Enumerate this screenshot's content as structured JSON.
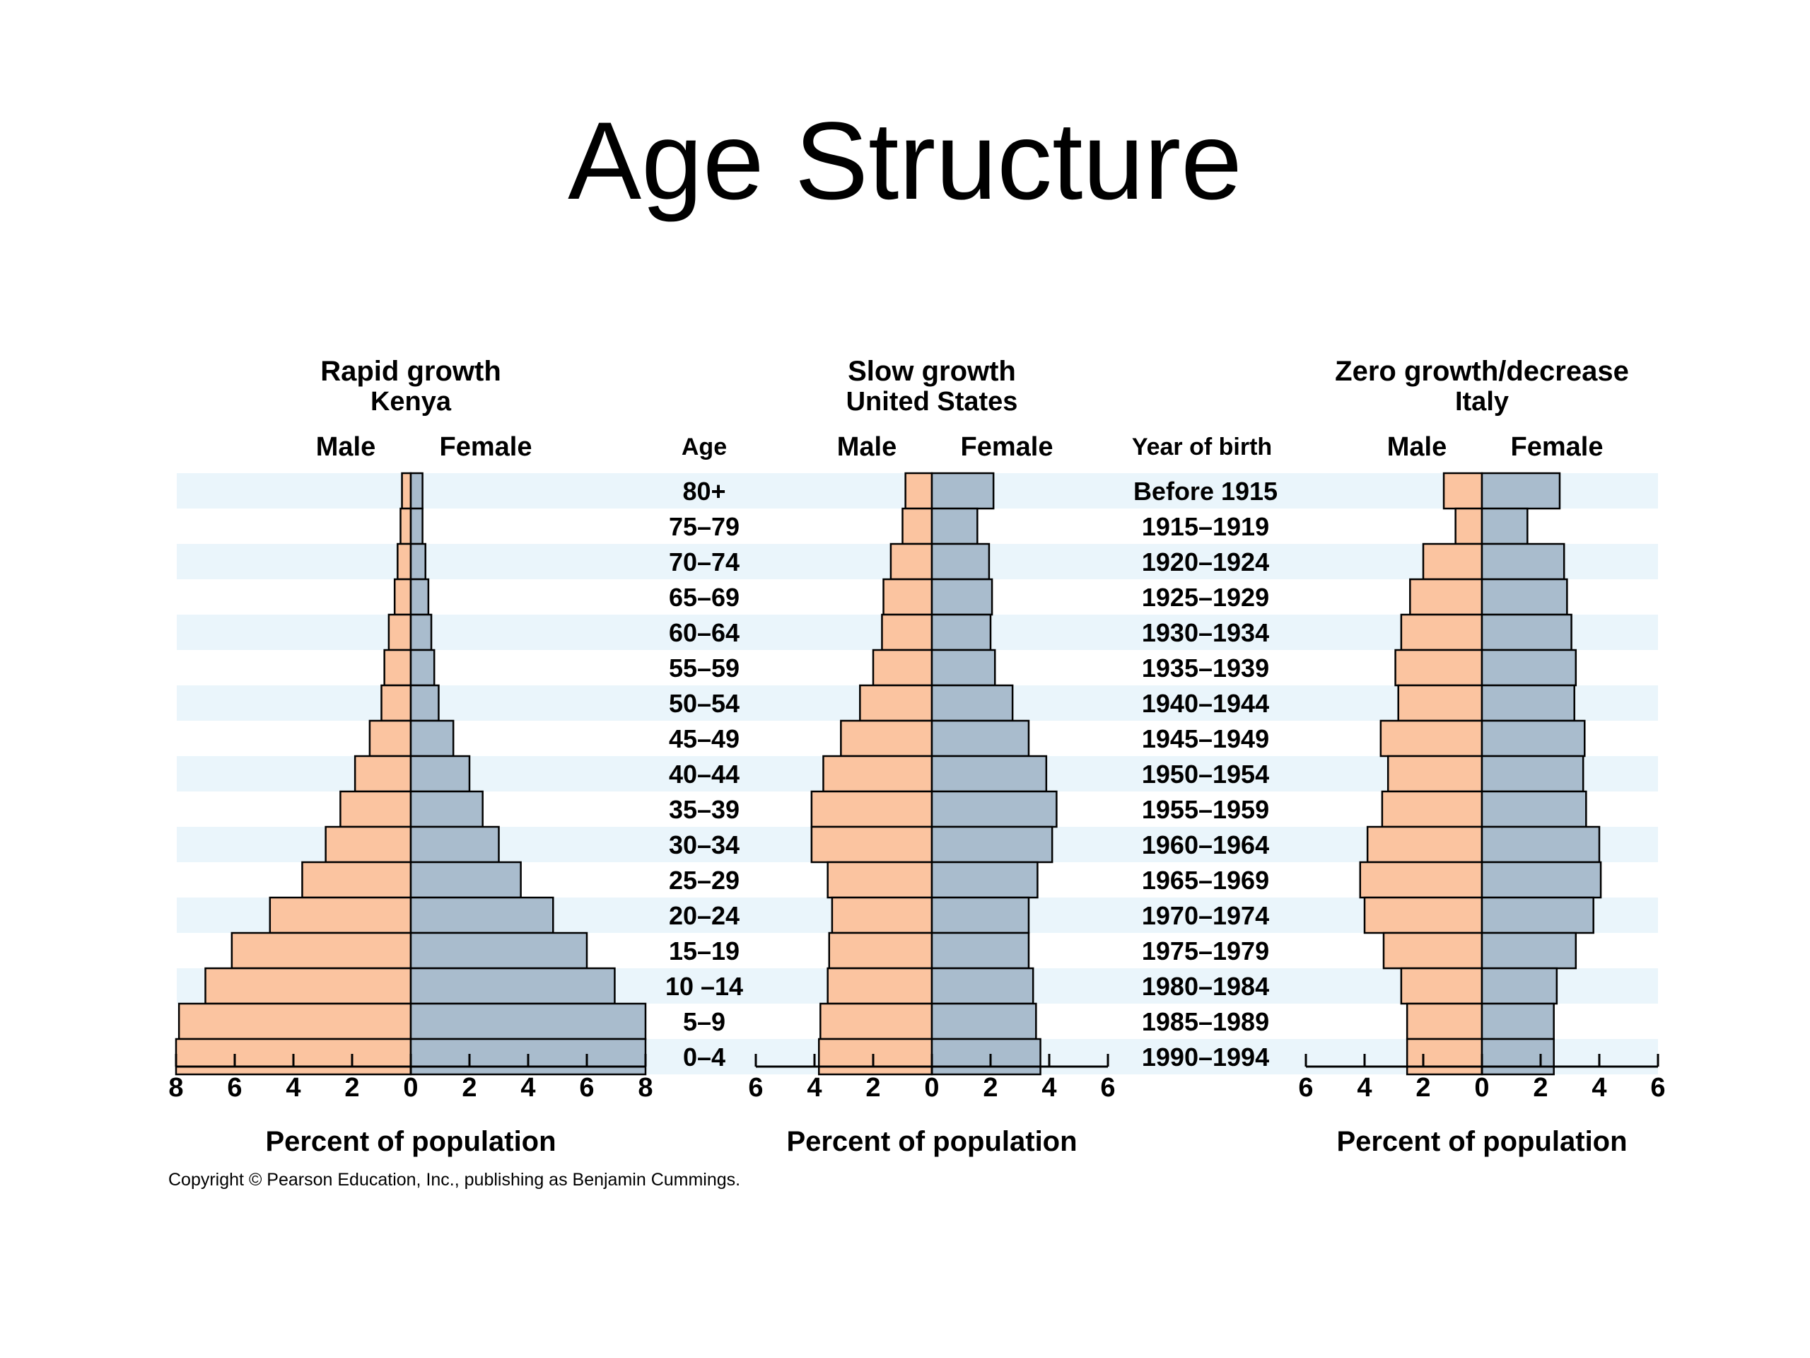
{
  "title": "Age Structure",
  "copyright": "Copyright © Pearson Education, Inc., publishing as Benjamin Cummings.",
  "colors": {
    "male": "#fbc4a0",
    "female": "#a9bccd",
    "band": "#eaf5fb",
    "outline": "#000000"
  },
  "labels": {
    "age_header": "Age",
    "year_header": "Year of birth"
  },
  "chart_data": {
    "type": "bar",
    "age_groups": [
      "80+",
      "75–79",
      "70–74",
      "65–69",
      "60–64",
      "55–59",
      "50–54",
      "45–49",
      "40–44",
      "35–39",
      "30–34",
      "25–29",
      "20–24",
      "15–19",
      "10 –14",
      "5–9",
      "0–4"
    ],
    "years_of_birth": [
      "Before 1915",
      "1915–1919",
      "1920–1924",
      "1925–1929",
      "1930–1934",
      "1935–1939",
      "1940–1944",
      "1945–1949",
      "1950–1954",
      "1955–1959",
      "1960–1964",
      "1965–1969",
      "1970–1974",
      "1975–1979",
      "1980–1984",
      "1985–1989",
      "1990–1994"
    ],
    "charts": [
      {
        "title": "Rapid growth",
        "subtitle": "Kenya",
        "male_label": "Male",
        "female_label": "Female",
        "xlabel": "Percent of population",
        "xmax": 8,
        "ticks": [
          8,
          6,
          4,
          2,
          0,
          2,
          4,
          6,
          8
        ],
        "male": [
          0.3,
          0.35,
          0.45,
          0.55,
          0.75,
          0.9,
          1.0,
          1.4,
          1.9,
          2.4,
          2.9,
          3.7,
          4.8,
          6.1,
          7.0,
          7.9,
          8.0
        ],
        "female": [
          0.4,
          0.4,
          0.5,
          0.6,
          0.7,
          0.8,
          0.95,
          1.45,
          2.0,
          2.45,
          3.0,
          3.75,
          4.85,
          6.0,
          6.95,
          8.0,
          8.0
        ]
      },
      {
        "title": "Slow growth",
        "subtitle": "United States",
        "male_label": "Male",
        "female_label": "Female",
        "xlabel": "Percent of population",
        "xmax": 6,
        "ticks": [
          6,
          4,
          2,
          0,
          2,
          4,
          6
        ],
        "male": [
          0.9,
          1.0,
          1.4,
          1.65,
          1.7,
          2.0,
          2.45,
          3.1,
          3.7,
          4.1,
          4.1,
          3.55,
          3.4,
          3.5,
          3.55,
          3.8,
          3.85
        ],
        "female": [
          2.1,
          1.55,
          1.95,
          2.05,
          2.0,
          2.15,
          2.75,
          3.3,
          3.9,
          4.25,
          4.1,
          3.6,
          3.3,
          3.3,
          3.45,
          3.55,
          3.7
        ]
      },
      {
        "title": "Zero growth/decrease",
        "subtitle": "Italy",
        "male_label": "Male",
        "female_label": "Female",
        "xlabel": "Percent of population",
        "xmax": 6,
        "ticks": [
          6,
          4,
          2,
          0,
          2,
          4,
          6
        ],
        "male": [
          1.3,
          0.9,
          2.0,
          2.45,
          2.75,
          2.95,
          2.85,
          3.45,
          3.2,
          3.4,
          3.9,
          4.15,
          4.0,
          3.35,
          2.75,
          2.55,
          2.55
        ],
        "female": [
          2.65,
          1.55,
          2.8,
          2.9,
          3.05,
          3.2,
          3.15,
          3.5,
          3.45,
          3.55,
          4.0,
          4.05,
          3.8,
          3.2,
          2.55,
          2.45,
          2.45
        ]
      }
    ]
  }
}
